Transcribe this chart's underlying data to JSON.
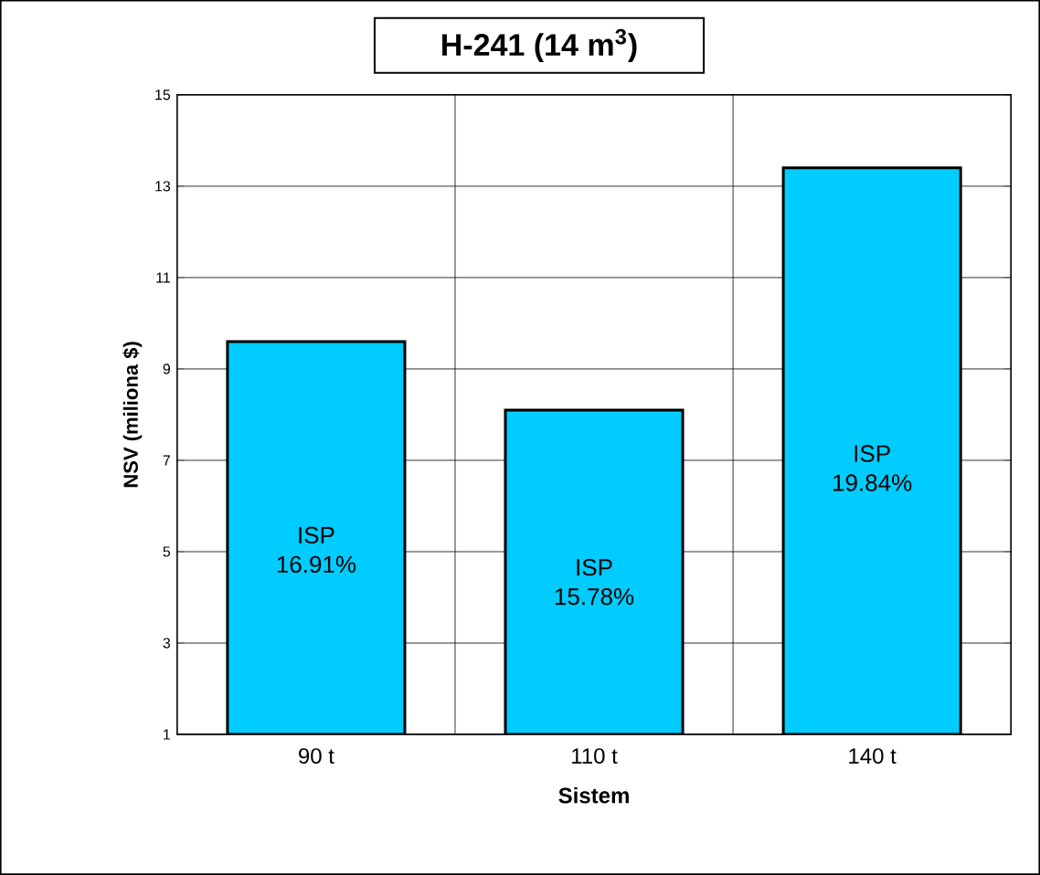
{
  "chart_data": {
    "type": "bar",
    "title": "H-241 (14 m$^{3}$)",
    "xlabel": "Sistem",
    "ylabel": "NSV (miliona $)",
    "categories": [
      "90 t",
      "110 t",
      "140 t"
    ],
    "values": [
      9.6,
      8.1,
      13.4
    ],
    "color": "#00ccff",
    "ylim": [
      1,
      15
    ],
    "yticks": [
      1,
      3,
      5,
      7,
      9,
      11,
      13,
      15
    ],
    "grid": true,
    "annotations": [
      "ISP 16.91%",
      "ISP 15.78%",
      "ISP 19.84%"
    ]
  }
}
